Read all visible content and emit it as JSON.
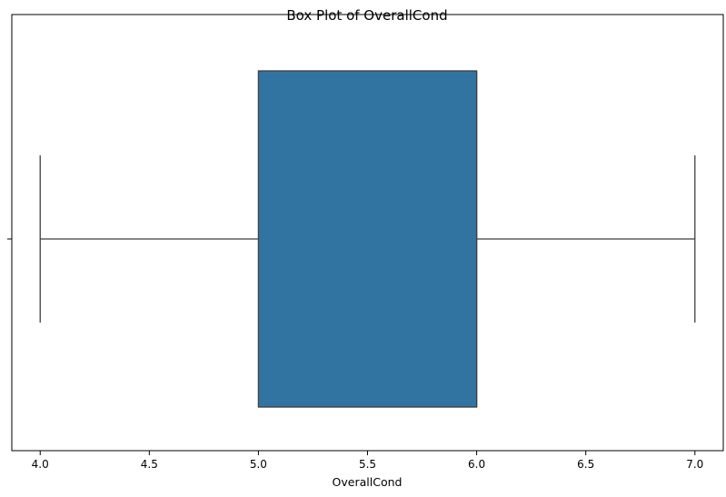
{
  "chart_data": {
    "type": "box",
    "title": "Box Plot of OverallCond",
    "xlabel": "OverallCond",
    "ylabel": "",
    "xlim": [
      3.87,
      7.13
    ],
    "xticks": [
      "4.0",
      "4.5",
      "5.0",
      "5.5",
      "6.0",
      "6.5",
      "7.0"
    ],
    "series": [
      {
        "whisker_low": 4.0,
        "q1": 5.0,
        "median": 6.0,
        "q3": 6.0,
        "whisker_high": 7.0
      }
    ],
    "colors": {
      "box_fill": "#3274a1",
      "line": "#3f3f3f",
      "axes": "#000000"
    },
    "grid": false,
    "orientation": "horizontal"
  }
}
